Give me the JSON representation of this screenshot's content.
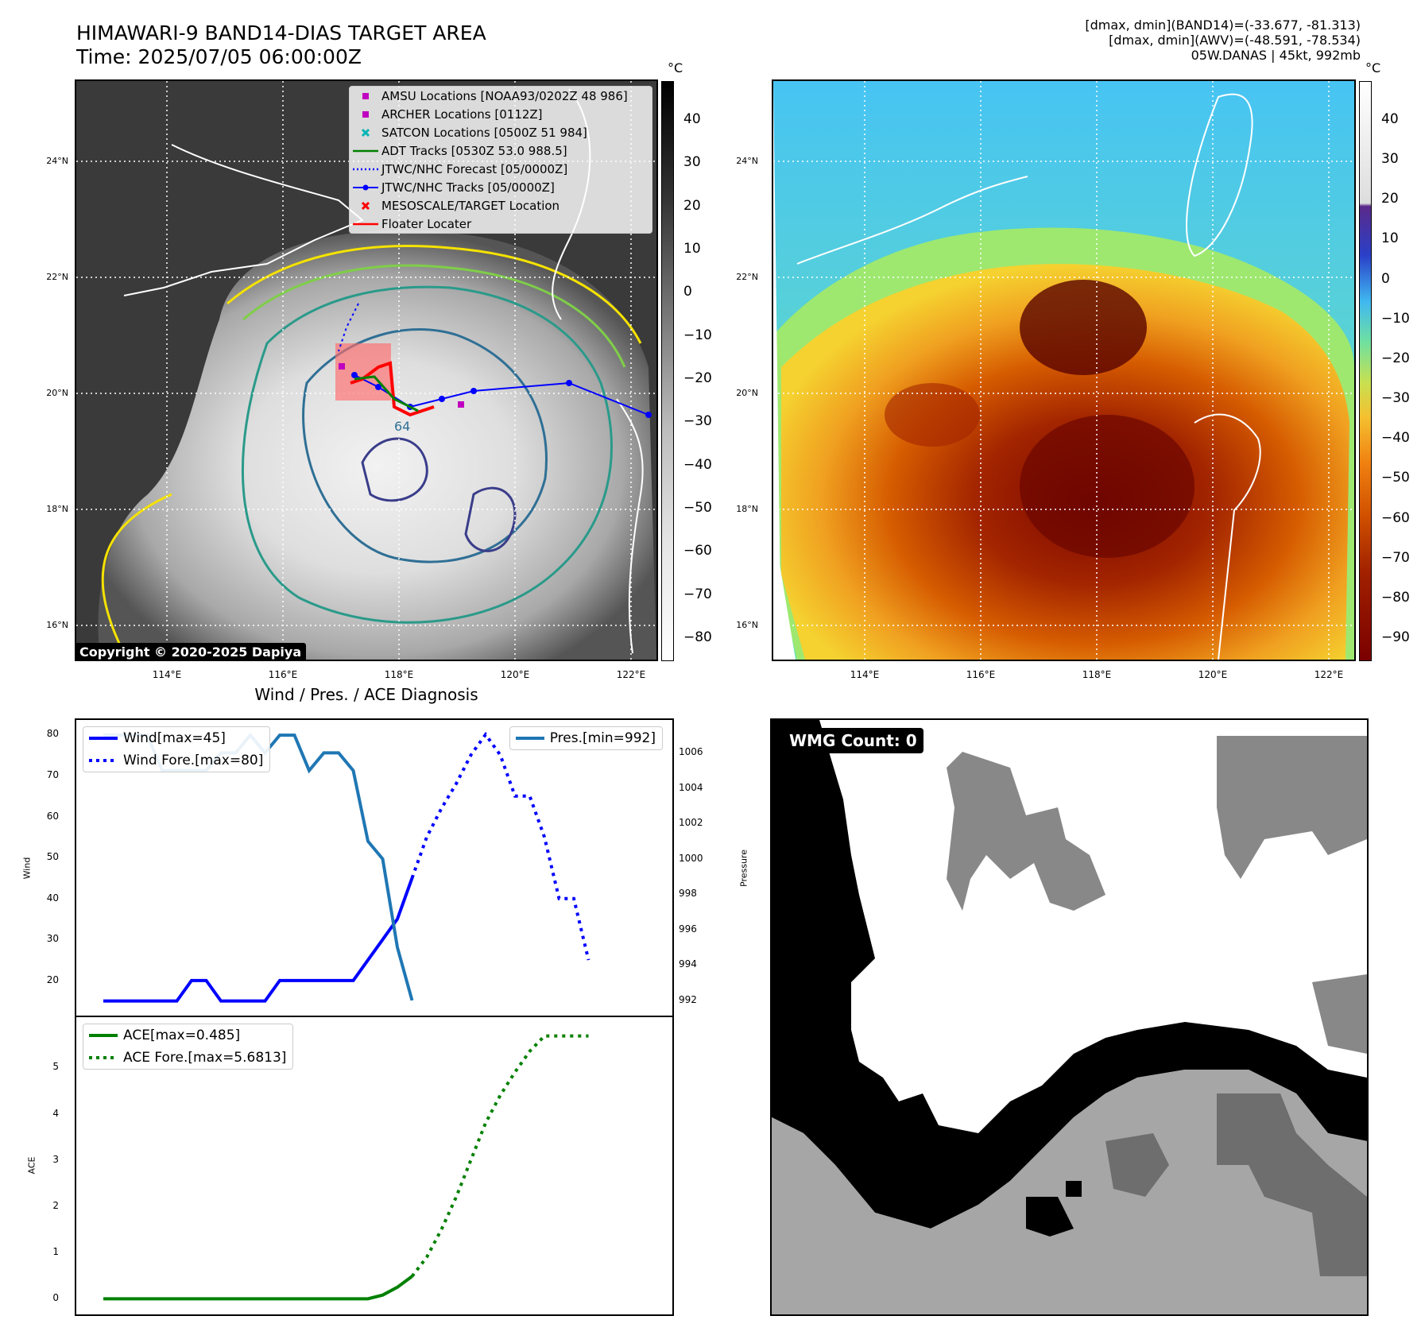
{
  "header": {
    "title_line1": "HIMAWARI-9 BAND14-DIAS TARGET AREA",
    "title_line2": "Time: 2025/07/05 06:00:00Z",
    "info_line1": "[dmax, dmin](BAND14)=(-33.677, -81.313)",
    "info_line2": "[dmax, dmin](AWV)=(-48.591, -78.534)",
    "info_line3": "05W.DANAS | 45kt, 992mb"
  },
  "map": {
    "lat_ticks": [
      "24°N",
      "22°N",
      "20°N",
      "18°N",
      "16°N"
    ],
    "lon_ticks": [
      "114°E",
      "116°E",
      "118°E",
      "120°E",
      "122°E"
    ],
    "copyright": "Copyright © 2020-2025 Dapiya",
    "legend": [
      {
        "label": "AMSU Locations [NOAA93/0202Z 48 986]",
        "symbol": "square",
        "color": "#c000c0"
      },
      {
        "label": "ARCHER Locations [0112Z]",
        "symbol": "square",
        "color": "#c000c0"
      },
      {
        "label": "SATCON Locations [0500Z 51 984]",
        "symbol": "x",
        "color": "#00b5b5"
      },
      {
        "label": "ADT Tracks [0530Z 53.0 988.5]",
        "symbol": "line",
        "color": "#008000"
      },
      {
        "label": "JTWC/NHC Forecast [05/0000Z]",
        "symbol": "dotted",
        "color": "#0000ff"
      },
      {
        "label": "JTWC/NHC Tracks [05/0000Z]",
        "symbol": "line-dot",
        "color": "#0000ff"
      },
      {
        "label": "MESOSCALE/TARGET Location",
        "symbol": "x",
        "color": "#ff0000"
      },
      {
        "label": "Floater Locater",
        "symbol": "line",
        "color": "#ff0000"
      }
    ],
    "contour_label": "64",
    "left_colorbar": {
      "unit": "°C",
      "ticks": [
        "40",
        "30",
        "20",
        "10",
        "0",
        "−10",
        "−20",
        "−30",
        "−40",
        "−50",
        "−60",
        "−70",
        "−80"
      ]
    },
    "right_colorbar": {
      "unit": "°C",
      "ticks": [
        "40",
        "30",
        "20",
        "10",
        "0",
        "−10",
        "−20",
        "−30",
        "−40",
        "−50",
        "−60",
        "−70",
        "−80",
        "−90"
      ]
    }
  },
  "diagnosis": {
    "title": "Wind / Pres. / ACE Diagnosis",
    "wind_ylabel": "Wind",
    "pres_ylabel": "Pressure",
    "ace_ylabel": "ACE",
    "wmg_label": "WMG Count: 0"
  },
  "colors": {
    "wind": "#0000ff",
    "pressure": "#1f77b4",
    "ace": "#008000"
  },
  "chart_data": [
    {
      "type": "line",
      "title": "Wind / Pres. / ACE Diagnosis",
      "ylabel": "Wind",
      "ylim": [
        13,
        82
      ],
      "y_ticks": [
        20,
        30,
        40,
        50,
        60,
        70,
        80
      ],
      "x": [
        0,
        1,
        2,
        3,
        4,
        5,
        6,
        7,
        8,
        9,
        10,
        11,
        12,
        13,
        14,
        15,
        16,
        17,
        18,
        19,
        20,
        21,
        22,
        23,
        24,
        25,
        26,
        27,
        28,
        29,
        30,
        31,
        32,
        33,
        34
      ],
      "series": [
        {
          "name": "Wind[max=45]",
          "style": "solid",
          "color": "#0000ff",
          "x": [
            0,
            5,
            6,
            7,
            8,
            11,
            12,
            17,
            18,
            19,
            20,
            21
          ],
          "values": [
            15,
            15,
            20,
            20,
            15,
            15,
            20,
            20,
            25,
            30,
            35,
            45
          ]
        },
        {
          "name": "Wind Fore.[max=80]",
          "style": "dotted",
          "color": "#0000ff",
          "x": [
            21,
            22,
            23,
            24,
            25,
            26,
            27,
            28,
            29,
            30,
            31,
            32,
            33
          ],
          "values": [
            45,
            55,
            62,
            68,
            75,
            80,
            75,
            65,
            65,
            55,
            40,
            40,
            25
          ]
        }
      ]
    },
    {
      "type": "line",
      "ylabel": "Pressure",
      "ylim": [
        991.5,
        1007.5
      ],
      "y_ticks": [
        992,
        994,
        996,
        998,
        1000,
        1002,
        1004,
        1006
      ],
      "series": [
        {
          "name": "Pres.[min=992]",
          "style": "solid",
          "color": "#1f77b4",
          "x": [
            0,
            3,
            4,
            7,
            8,
            9,
            10,
            11,
            12,
            13,
            14,
            15,
            16,
            17,
            18,
            19,
            20,
            21
          ],
          "values": [
            1007,
            1007,
            1005,
            1005,
            1006,
            1006,
            1007,
            1006,
            1007,
            1007,
            1005,
            1006,
            1006,
            1005,
            1001,
            1000,
            995,
            992
          ]
        }
      ]
    },
    {
      "type": "line",
      "ylabel": "ACE",
      "ylim": [
        -0.2,
        5.95
      ],
      "y_ticks": [
        0,
        1,
        2,
        3,
        4,
        5
      ],
      "series": [
        {
          "name": "ACE[max=0.485]",
          "style": "solid",
          "color": "#008000",
          "x": [
            0,
            18,
            19,
            20,
            21
          ],
          "values": [
            0,
            0,
            0.08,
            0.25,
            0.485
          ]
        },
        {
          "name": "ACE Fore.[max=5.6813]",
          "style": "dotted",
          "color": "#008000",
          "x": [
            21,
            22,
            23,
            24,
            25,
            26,
            27,
            28,
            29,
            30,
            31,
            32,
            33
          ],
          "values": [
            0.485,
            0.9,
            1.5,
            2.2,
            3.0,
            3.8,
            4.4,
            4.9,
            5.35,
            5.6813,
            5.6813,
            5.6813,
            5.6813
          ]
        }
      ]
    }
  ]
}
